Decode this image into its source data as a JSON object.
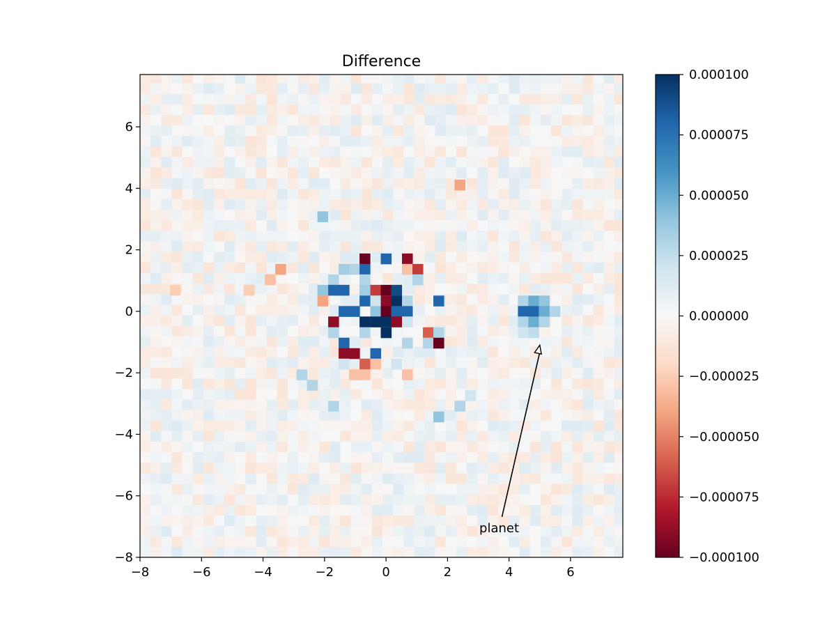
{
  "chart_data": {
    "type": "heatmap",
    "title": "Difference",
    "xlabel": "",
    "ylabel": "",
    "xlim": [
      -8,
      7.7
    ],
    "ylim": [
      -8,
      7.7
    ],
    "x_ticks": [
      -8,
      -6,
      -4,
      -2,
      0,
      2,
      4,
      6
    ],
    "y_ticks": [
      -8,
      -6,
      -4,
      -2,
      0,
      2,
      4,
      6
    ],
    "x_tick_labels": [
      "−8",
      "−6",
      "−4",
      "−2",
      "0",
      "2",
      "4",
      "6"
    ],
    "y_tick_labels": [
      "−8",
      "−6",
      "−4",
      "−2",
      "0",
      "2",
      "4",
      "6"
    ],
    "grid": false,
    "colormap": "RdBu",
    "color_range": [
      -0.0001,
      0.0001
    ],
    "colorbar_ticks": [
      0.0001,
      7.5e-05,
      5e-05,
      2.5e-05,
      0,
      -2.5e-05,
      -5e-05,
      -7.5e-05,
      -0.0001
    ],
    "colorbar_tick_labels": [
      "0.000100",
      "0.000075",
      "0.000050",
      "0.000025",
      "0.000000",
      "−0.000025",
      "−0.000050",
      "−0.000075",
      "−0.000100"
    ],
    "pixel_size": 0.3428,
    "grid_shape": [
      46,
      46
    ],
    "background": "low-level noise, |value| < ~1.5e-5",
    "features": [
      {
        "x": -0.69,
        "y": 1.71,
        "value": -0.0001
      },
      {
        "x": 0.0,
        "y": 1.71,
        "value": 8e-05
      },
      {
        "x": 0.69,
        "y": 1.71,
        "value": -9e-05
      },
      {
        "x": -1.37,
        "y": 1.37,
        "value": 3.5e-05
      },
      {
        "x": -1.03,
        "y": 1.37,
        "value": 3e-05
      },
      {
        "x": -0.69,
        "y": 1.37,
        "value": 8e-05
      },
      {
        "x": 0.69,
        "y": 1.37,
        "value": -3e-05
      },
      {
        "x": 1.03,
        "y": 1.37,
        "value": -7e-05
      },
      {
        "x": -1.71,
        "y": 1.03,
        "value": 3e-05
      },
      {
        "x": -0.69,
        "y": 1.03,
        "value": 3e-05
      },
      {
        "x": 1.03,
        "y": 1.03,
        "value": 3e-05
      },
      {
        "x": -2.06,
        "y": 0.69,
        "value": 4e-05
      },
      {
        "x": -1.71,
        "y": 0.69,
        "value": 8e-05
      },
      {
        "x": -1.37,
        "y": 0.69,
        "value": 8e-05
      },
      {
        "x": -0.69,
        "y": 0.69,
        "value": 3.5e-05
      },
      {
        "x": -0.34,
        "y": 0.69,
        "value": -7e-05
      },
      {
        "x": 0.0,
        "y": 0.69,
        "value": -0.0001
      },
      {
        "x": 0.34,
        "y": 0.69,
        "value": 9e-05
      },
      {
        "x": -2.06,
        "y": 0.34,
        "value": -4e-05
      },
      {
        "x": -0.69,
        "y": 0.34,
        "value": 8e-05
      },
      {
        "x": -0.34,
        "y": 0.34,
        "value": 2e-05
      },
      {
        "x": 0.0,
        "y": 0.34,
        "value": -9e-05
      },
      {
        "x": 0.34,
        "y": 0.34,
        "value": 0.0001
      },
      {
        "x": 0.69,
        "y": 0.34,
        "value": 3e-05
      },
      {
        "x": 1.71,
        "y": 0.34,
        "value": 8e-05
      },
      {
        "x": -1.37,
        "y": 0.0,
        "value": 8e-05
      },
      {
        "x": -1.03,
        "y": 0.0,
        "value": 8e-05
      },
      {
        "x": -0.34,
        "y": 0.0,
        "value": 4e-05
      },
      {
        "x": 0.0,
        "y": 0.0,
        "value": -0.0001
      },
      {
        "x": 0.34,
        "y": 0.0,
        "value": 8e-05
      },
      {
        "x": 0.69,
        "y": 0.0,
        "value": 8e-05
      },
      {
        "x": -1.71,
        "y": -0.34,
        "value": -9e-05
      },
      {
        "x": -0.69,
        "y": -0.34,
        "value": 0.0001
      },
      {
        "x": -0.34,
        "y": -0.34,
        "value": 0.0001
      },
      {
        "x": 0.0,
        "y": -0.34,
        "value": 0.0001
      },
      {
        "x": 0.34,
        "y": -0.34,
        "value": -9e-05
      },
      {
        "x": 0.69,
        "y": -0.34,
        "value": 2e-05
      },
      {
        "x": -1.71,
        "y": -0.69,
        "value": 3e-05
      },
      {
        "x": -0.69,
        "y": -0.69,
        "value": 3e-05
      },
      {
        "x": 0.0,
        "y": -0.69,
        "value": 0.0001
      },
      {
        "x": 1.37,
        "y": -0.69,
        "value": -6e-05
      },
      {
        "x": 1.71,
        "y": -0.69,
        "value": 3e-05
      },
      {
        "x": -1.37,
        "y": -1.03,
        "value": 8e-05
      },
      {
        "x": 0.69,
        "y": -1.03,
        "value": 3e-05
      },
      {
        "x": 1.37,
        "y": -1.03,
        "value": 3e-05
      },
      {
        "x": 1.71,
        "y": -1.03,
        "value": -0.0001
      },
      {
        "x": -1.37,
        "y": -1.37,
        "value": -9e-05
      },
      {
        "x": -1.03,
        "y": -1.37,
        "value": -9e-05
      },
      {
        "x": -0.34,
        "y": -1.37,
        "value": 8e-05
      },
      {
        "x": -1.37,
        "y": -1.71,
        "value": 2e-05
      },
      {
        "x": -0.69,
        "y": -1.71,
        "value": -6e-05
      },
      {
        "x": -0.34,
        "y": -1.71,
        "value": -3e-05
      },
      {
        "x": 0.34,
        "y": -1.71,
        "value": 2e-05
      },
      {
        "x": -1.03,
        "y": -2.06,
        "value": -3e-05
      },
      {
        "x": -0.69,
        "y": -2.06,
        "value": -3e-05
      },
      {
        "x": 0.69,
        "y": -2.06,
        "value": -3e-05
      },
      {
        "x": -2.06,
        "y": 3.08,
        "value": 4e-05
      },
      {
        "x": -2.74,
        "y": -2.06,
        "value": 3e-05
      },
      {
        "x": -2.4,
        "y": -2.4,
        "value": 3e-05
      },
      {
        "x": -1.71,
        "y": -3.08,
        "value": 3e-05
      },
      {
        "x": 1.71,
        "y": -3.43,
        "value": 4e-05
      },
      {
        "x": 2.4,
        "y": -3.08,
        "value": 3e-05
      },
      {
        "x": 2.74,
        "y": -2.74,
        "value": 2e-05
      },
      {
        "x": 2.4,
        "y": 4.11,
        "value": -4e-05
      },
      {
        "x": -6.86,
        "y": 0.69,
        "value": -2.5e-05
      },
      {
        "x": -3.43,
        "y": 1.37,
        "value": -4e-05
      },
      {
        "x": -3.77,
        "y": 1.03,
        "value": -3e-05
      },
      {
        "x": -4.46,
        "y": 0.69,
        "value": -2.5e-05
      },
      {
        "x": 4.46,
        "y": 0.34,
        "value": 3e-05
      },
      {
        "x": 4.8,
        "y": 0.34,
        "value": 5e-05
      },
      {
        "x": 5.14,
        "y": 0.34,
        "value": 4e-05
      },
      {
        "x": 4.46,
        "y": 0.0,
        "value": 8e-05
      },
      {
        "x": 4.8,
        "y": 0.0,
        "value": 8e-05
      },
      {
        "x": 5.14,
        "y": 0.0,
        "value": 5e-05
      },
      {
        "x": 5.49,
        "y": 0.0,
        "value": 3e-05
      },
      {
        "x": 4.46,
        "y": -0.34,
        "value": 3e-05
      },
      {
        "x": 4.8,
        "y": -0.34,
        "value": 5e-05
      },
      {
        "x": 5.14,
        "y": -0.34,
        "value": 3e-05
      },
      {
        "x": 4.46,
        "y": -0.69,
        "value": 2e-05
      },
      {
        "x": 4.8,
        "y": -0.69,
        "value": 2.5e-05
      }
    ],
    "annotations": [
      {
        "text": "planet",
        "xy": [
          5.0,
          -1.1
        ],
        "xytext": [
          3.0,
          -7.0
        ],
        "arrow": true
      }
    ]
  }
}
